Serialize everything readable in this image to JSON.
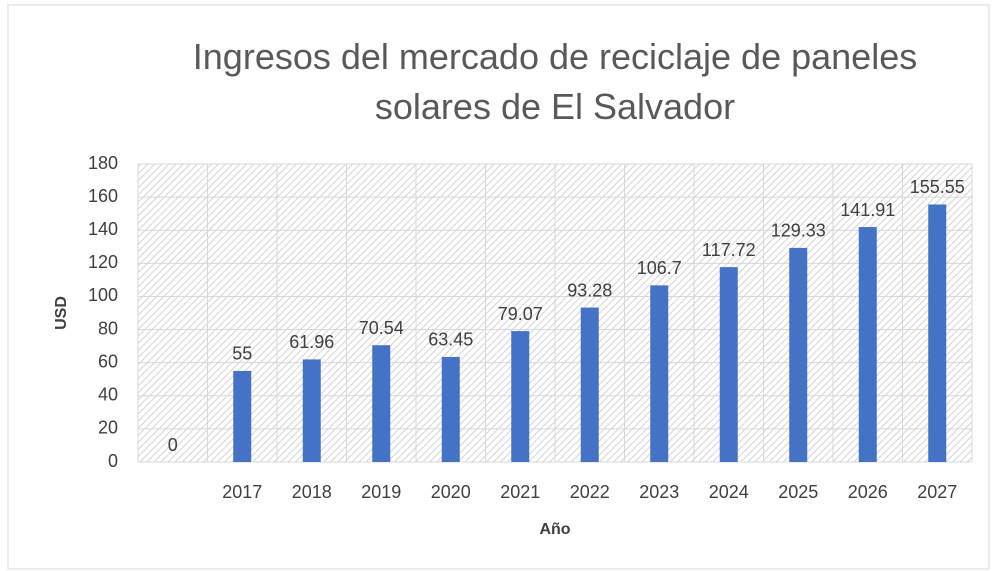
{
  "chart_data": {
    "type": "bar",
    "title": "Ingresos del mercado de reciclaje de paneles solares de El Salvador",
    "x_label": "Año",
    "y_label": "USD",
    "categories": [
      null,
      "2017",
      "2018",
      "2019",
      "2020",
      "2021",
      "2022",
      "2023",
      "2024",
      "2025",
      "2026",
      "2027"
    ],
    "values": [
      0,
      55,
      61.96,
      70.54,
      63.45,
      79.07,
      93.28,
      106.7,
      117.72,
      129.33,
      141.91,
      155.55
    ],
    "color": "#4472c4",
    "ylim": [
      0,
      180
    ],
    "yticks": [
      0,
      20,
      40,
      60,
      80,
      100,
      120,
      140,
      160,
      180
    ],
    "grid": true
  }
}
